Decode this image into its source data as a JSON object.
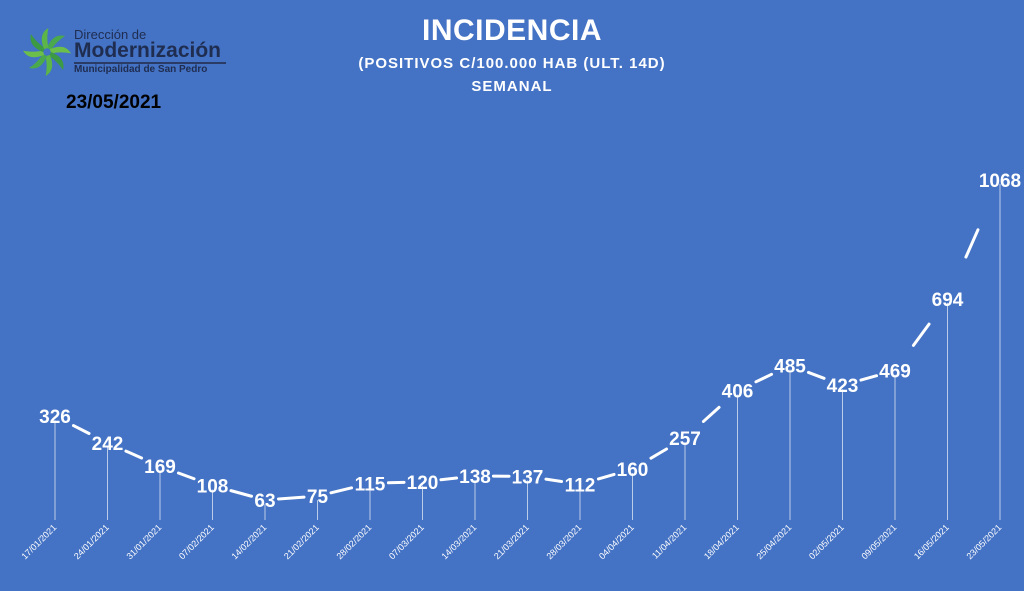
{
  "logo": {
    "line1": "Dirección de",
    "line2": "Modernización",
    "line3": "Municipalidad de San Pedro",
    "icon": "green-swirl-logo-icon"
  },
  "report_date": "23/05/2021",
  "chart_data": {
    "type": "line",
    "title": "INCIDENCIA",
    "subtitle": "(POSITIVOS  C/100.000  HAB (ULT.  14D)",
    "period": "SEMANAL",
    "xlabel": "",
    "ylabel": "",
    "grid": false,
    "legend": "none",
    "categories": [
      "17/01/2021",
      "24/01/2021",
      "31/01/2021",
      "07/02/2021",
      "14/02/2021",
      "21/02/2021",
      "28/02/2021",
      "07/03/2021",
      "14/03/2021",
      "21/03/2021",
      "28/03/2021",
      "04/04/2021",
      "11/04/2021",
      "18/04/2021",
      "25/04/2021",
      "02/05/2021",
      "09/05/2021",
      "16/05/2021",
      "23/05/2021"
    ],
    "values": [
      326,
      242,
      169,
      108,
      63,
      75,
      115,
      120,
      138,
      137,
      112,
      160,
      257,
      406,
      485,
      423,
      469,
      694,
      1068
    ],
    "ylim": [
      0,
      1130
    ],
    "colors": {
      "background": "#4472c4",
      "line": "#ffffff",
      "labels": "#ffffff"
    }
  }
}
